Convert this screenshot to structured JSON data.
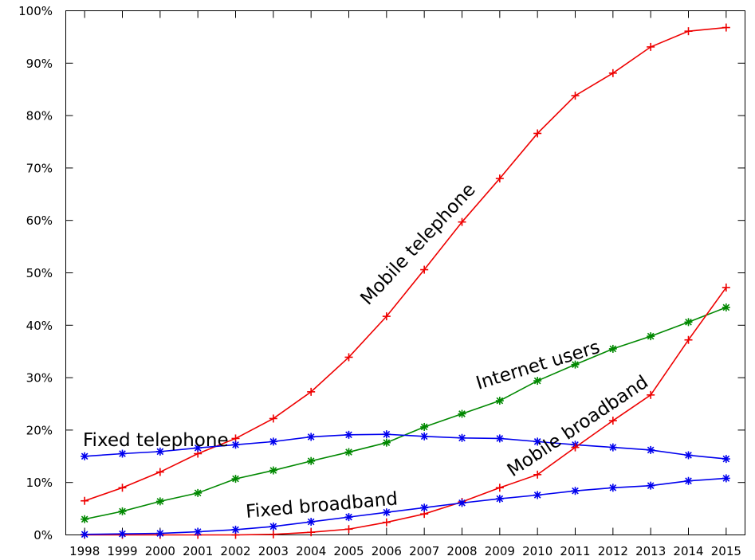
{
  "chart_data": {
    "type": "line",
    "title": "",
    "xlabel": "",
    "ylabel": "",
    "x": [
      1998,
      1999,
      2000,
      2001,
      2002,
      2003,
      2004,
      2005,
      2006,
      2007,
      2008,
      2009,
      2010,
      2011,
      2012,
      2013,
      2014,
      2015
    ],
    "x_tick_labels": [
      "1998",
      "1999",
      "2000",
      "2001",
      "2002",
      "2003",
      "2004",
      "2005",
      "2006",
      "2007",
      "2008",
      "2009",
      "2010",
      "2011",
      "2012",
      "2013",
      "2014",
      "2015"
    ],
    "ylim": [
      0,
      100
    ],
    "y_ticks": [
      0,
      10,
      20,
      30,
      40,
      50,
      60,
      70,
      80,
      90,
      100
    ],
    "y_tick_labels": [
      "0%",
      "10%",
      "20%",
      "30%",
      "40%",
      "50%",
      "60%",
      "70%",
      "80%",
      "90%",
      "100%"
    ],
    "grid": false,
    "legend": "none",
    "series": [
      {
        "name": "Mobile telephone",
        "color": "#ee0000",
        "marker": "plus",
        "values": [
          6.5,
          9.0,
          12.0,
          15.5,
          18.4,
          22.2,
          27.3,
          33.9,
          41.7,
          50.6,
          59.7,
          68.0,
          76.6,
          83.8,
          88.1,
          93.1,
          96.1,
          96.8
        ]
      },
      {
        "name": "Internet users",
        "color": "#008800",
        "marker": "star",
        "values": [
          3.0,
          4.5,
          6.4,
          8.0,
          10.7,
          12.3,
          14.1,
          15.8,
          17.6,
          20.6,
          23.1,
          25.6,
          29.4,
          32.5,
          35.5,
          37.9,
          40.6,
          43.4
        ]
      },
      {
        "name": "Fixed telephone",
        "color": "#0000ee",
        "marker": "star",
        "values": [
          15.0,
          15.5,
          15.9,
          16.6,
          17.2,
          17.8,
          18.7,
          19.1,
          19.2,
          18.8,
          18.5,
          18.4,
          17.8,
          17.2,
          16.7,
          16.2,
          15.2,
          14.5
        ]
      },
      {
        "name": "Mobile broadband",
        "color": "#ee0000",
        "marker": "plus",
        "values": [
          0.0,
          0.0,
          0.0,
          0.0,
          0.0,
          0.1,
          0.5,
          1.1,
          2.4,
          4.0,
          6.3,
          9.0,
          11.5,
          16.7,
          21.8,
          26.7,
          37.2,
          47.2
        ]
      },
      {
        "name": "Fixed broadband",
        "color": "#0000ee",
        "marker": "star",
        "values": [
          0.1,
          0.2,
          0.3,
          0.6,
          1.0,
          1.6,
          2.5,
          3.4,
          4.3,
          5.2,
          6.1,
          6.9,
          7.6,
          8.4,
          9.0,
          9.4,
          10.3,
          10.8
        ]
      }
    ]
  }
}
